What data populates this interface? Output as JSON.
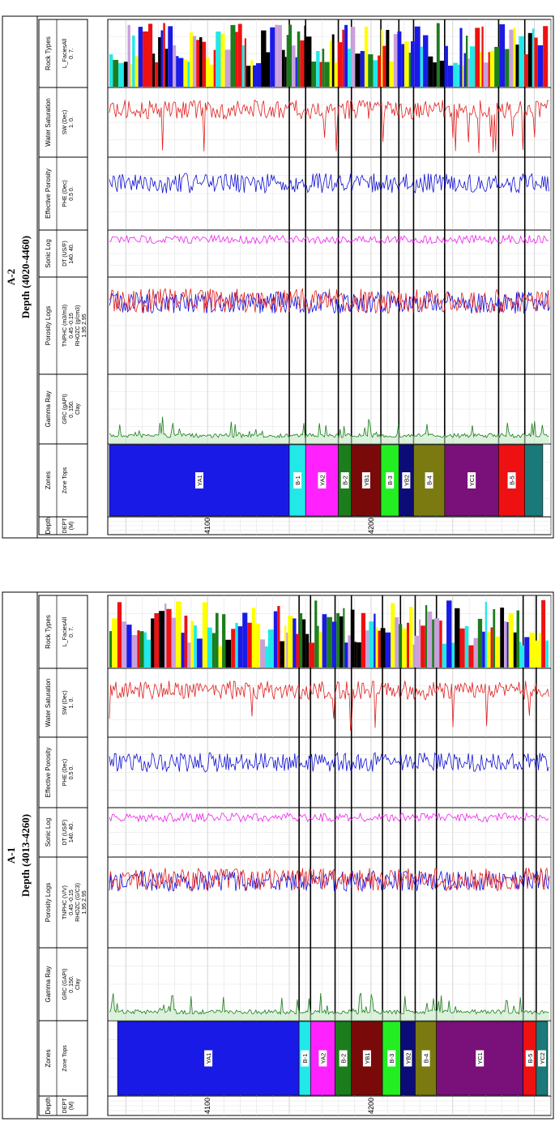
{
  "colors": {
    "gr": "#1e7d1e",
    "nphi": "#1010e0",
    "rhob": "#e02020",
    "sonic": "#ee22ee",
    "phie": "#1010d0",
    "sw": "#e02020"
  },
  "panels": [
    {
      "id": "a2",
      "title": "A-2",
      "subtitle": "Depth (4020-4460)",
      "headers": [
        {
          "name": "Depth",
          "lines": [
            "DEPT",
            "(M)"
          ]
        },
        {
          "name": "Zones",
          "lines": [
            "Zone Tops"
          ]
        },
        {
          "name": "Gamma Ray",
          "lines": [
            "GRC (gAPI)",
            "0. 150.",
            "Clay"
          ]
        },
        {
          "name": "Porosity Logs",
          "lines": [
            "TNPHC (m3/m3)",
            "0.45 -0.15",
            "RHOZC (g/cm3)",
            "1.95 2.95"
          ]
        },
        {
          "name": "Sonic Log",
          "lines": [
            "DT (US/F)",
            "140. 40."
          ]
        },
        {
          "name": "Effective Porosity",
          "lines": [
            "PHE (Dec)",
            "0.5 0."
          ]
        },
        {
          "name": "Water Saturation",
          "lines": [
            "SW (Dec)",
            "1. 0."
          ]
        },
        {
          "name": "Rock Types",
          "lines": [
            "L_FaciesAll",
            "0. 7."
          ]
        }
      ],
      "depth_labels": [
        "4100",
        "4200"
      ],
      "zones": [
        {
          "name": "YA1",
          "color": "#1a1ae6",
          "from": 4040,
          "to": 4150
        },
        {
          "name": "B-1",
          "color": "#22e8e8",
          "from": 4150,
          "to": 4160
        },
        {
          "name": "YA2",
          "color": "#ff22ff",
          "from": 4160,
          "to": 4180
        },
        {
          "name": "B-2",
          "color": "#1c7d1c",
          "from": 4180,
          "to": 4188
        },
        {
          "name": "YB1",
          "color": "#7a0a0a",
          "from": 4188,
          "to": 4206
        },
        {
          "name": "B-3",
          "color": "#22ee22",
          "from": 4206,
          "to": 4217
        },
        {
          "name": "YB2",
          "color": "#0c0c78",
          "from": 4217,
          "to": 4226
        },
        {
          "name": "B-4",
          "color": "#7a7a10",
          "from": 4226,
          "to": 4245
        },
        {
          "name": "YC1",
          "color": "#7a107a",
          "from": 4245,
          "to": 4278
        },
        {
          "name": "B-5",
          "color": "#ee1111",
          "from": 4278,
          "to": 4294
        },
        {
          "name": "",
          "color": "#1a7a7a",
          "from": 4294,
          "to": 4305
        }
      ]
    },
    {
      "id": "a1",
      "title": "A-1",
      "subtitle": "Depth (4013-4260)",
      "headers": [
        {
          "name": "Depth",
          "lines": [
            "DEPT",
            "(M)"
          ]
        },
        {
          "name": "Zones",
          "lines": [
            "Zone Tops"
          ]
        },
        {
          "name": "Gamma Ray",
          "lines": [
            "GRC (GAPI)",
            "0. 150.",
            "Clay"
          ]
        },
        {
          "name": "Porosity Logs",
          "lines": [
            "TNPHC (V/V)",
            "0.45 -0.15",
            "RHOZC (G/C3)",
            "1.95 2.95"
          ]
        },
        {
          "name": "Sonic Log",
          "lines": [
            "DT (US/F)",
            "140. 40."
          ]
        },
        {
          "name": "Effective Porosity",
          "lines": [
            "PHE (Dec)",
            "0.5 0."
          ]
        },
        {
          "name": "Water Saturation",
          "lines": [
            "SW (Dec)",
            "1. 0."
          ]
        },
        {
          "name": "Rock Types",
          "lines": [
            "L_FaciesAll",
            "0. 7."
          ]
        }
      ],
      "depth_labels": [
        "4100",
        "4200"
      ],
      "zones": [
        {
          "name": "YA1",
          "color": "#1a1ae6",
          "from": 4045,
          "to": 4156
        },
        {
          "name": "B-1",
          "color": "#22e8e8",
          "from": 4156,
          "to": 4163
        },
        {
          "name": "YA2",
          "color": "#ff22ff",
          "from": 4163,
          "to": 4178
        },
        {
          "name": "B-2",
          "color": "#1c7d1c",
          "from": 4178,
          "to": 4188
        },
        {
          "name": "YB1",
          "color": "#7a0a0a",
          "from": 4188,
          "to": 4207
        },
        {
          "name": "B-3",
          "color": "#22ee22",
          "from": 4207,
          "to": 4218
        },
        {
          "name": "YB2",
          "color": "#0c0c78",
          "from": 4218,
          "to": 4227
        },
        {
          "name": "B-4",
          "color": "#7a7a10",
          "from": 4227,
          "to": 4240
        },
        {
          "name": "YC1",
          "color": "#7a107a",
          "from": 4240,
          "to": 4293
        },
        {
          "name": "B-5",
          "color": "#ee1111",
          "from": 4293,
          "to": 4301
        },
        {
          "name": "YC2",
          "color": "#1a7a7a",
          "from": 4301,
          "to": 4308
        }
      ]
    }
  ],
  "chart_data": {
    "type": "line",
    "depth_unit": "M",
    "depth_axis": [
      4040,
      4310
    ],
    "tracks": [
      "Depth",
      "Zones",
      "Gamma Ray",
      "Porosity Logs",
      "Sonic Log",
      "Effective Porosity",
      "Water Saturation",
      "Rock Types"
    ],
    "scales": {
      "GRC": [
        0,
        150
      ],
      "TNPHC": [
        0.45,
        -0.15
      ],
      "RHOZC": [
        1.95,
        2.95
      ],
      "DT": [
        140,
        40
      ],
      "PHE": [
        0.5,
        0
      ],
      "SW": [
        1,
        0
      ],
      "L_FaciesAll": [
        0,
        7
      ]
    },
    "facies_colors": [
      "#ee1111",
      "#1a1ae6",
      "#1c7d1c",
      "#22e8e8",
      "#ffff00",
      "#000000",
      "#c9a0dc"
    ]
  }
}
